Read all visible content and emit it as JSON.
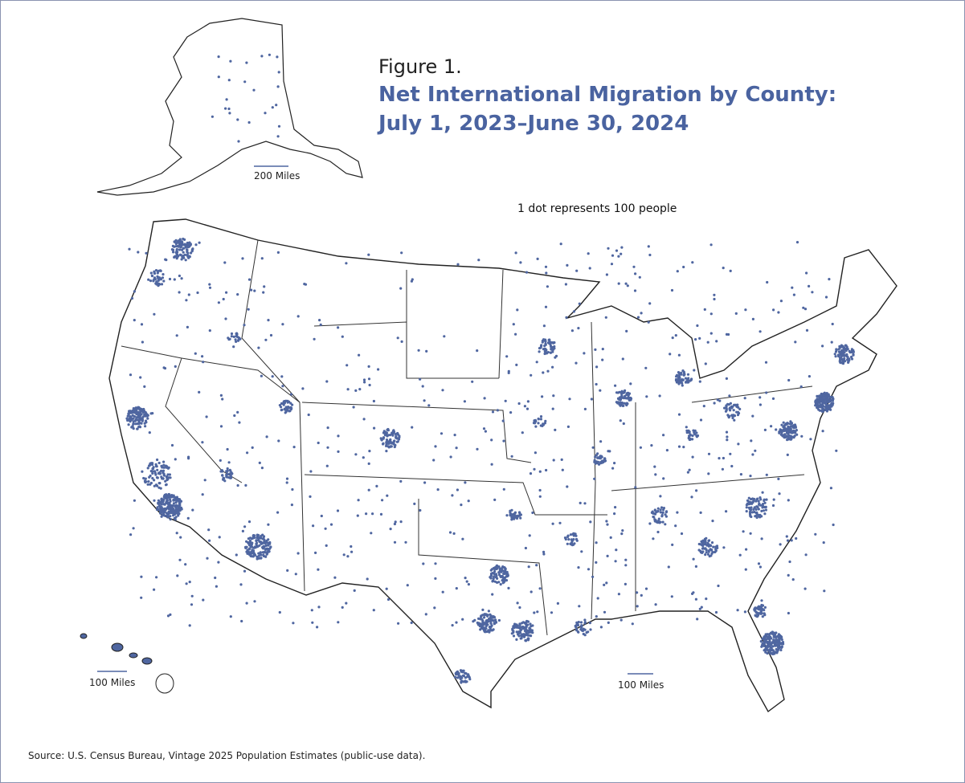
{
  "figure_label": "Figure 1.",
  "title": [
    "Net International Migration by County:",
    "July 1, 2023–June 30, 2024"
  ],
  "note": "1 dot represents 100 people",
  "scale_bars": {
    "alaska": "200 Miles",
    "hawaii": "100 Miles",
    "conus": "100 Miles"
  },
  "source": "Source: U.S. Census Bureau, Vintage 2025 Population Estimates (public-use data)."
}
